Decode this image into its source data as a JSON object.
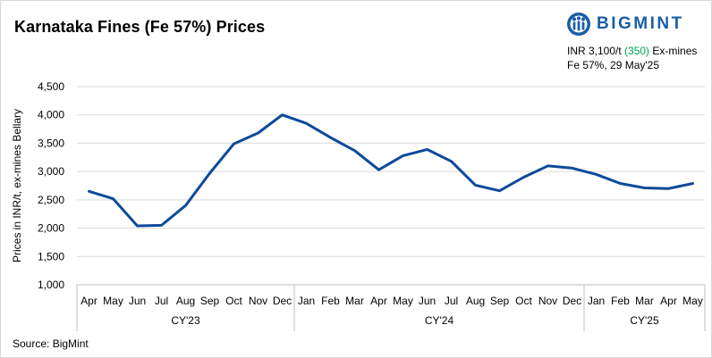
{
  "header": {
    "title": "Karnataka Fines (Fe 57%) Prices",
    "brand_name": "BIGMINT",
    "price_prefix": "INR 3,100/t ",
    "price_change": "(350)",
    "price_suffix": " Ex-mines",
    "spec_line": "Fe 57%, 29 May'25",
    "brand_color": "#1b5fa8",
    "change_color": "#00a651"
  },
  "footer": {
    "source": "Source: BigMint"
  },
  "chart_data": {
    "type": "line",
    "title": "Karnataka Fines (Fe 57%) Prices",
    "ylabel": "Prices in INR/t, ex-mines Bellary",
    "xlabel": "",
    "ylim": [
      1000,
      4500
    ],
    "yticks": [
      1000,
      1500,
      2000,
      2500,
      3000,
      3500,
      4000,
      4500
    ],
    "ytick_labels": [
      "1,000",
      "1,500",
      "2,000",
      "2,500",
      "3,000",
      "3,500",
      "4,000",
      "4,500"
    ],
    "grid": true,
    "legend": "none",
    "line_color": "#0d4a9a",
    "categories": [
      "Apr",
      "May",
      "Jun",
      "Jul",
      "Aug",
      "Sep",
      "Oct",
      "Nov",
      "Dec",
      "Jan",
      "Feb",
      "Mar",
      "Apr",
      "May",
      "Jun",
      "Jul",
      "Aug",
      "Sep",
      "Oct",
      "Nov",
      "Dec",
      "Jan",
      "Feb",
      "Mar",
      "Apr",
      "May"
    ],
    "groups": [
      {
        "label": "CY'23",
        "start": 0,
        "end": 8
      },
      {
        "label": "CY'24",
        "start": 9,
        "end": 20
      },
      {
        "label": "CY'25",
        "start": 21,
        "end": 25
      }
    ],
    "series": [
      {
        "values": [
          2650,
          2520,
          2040,
          2050,
          2400,
          2970,
          3490,
          3680,
          4000,
          3850,
          3600,
          3370,
          3030,
          3280,
          3390,
          3180,
          2760,
          2660,
          2900,
          3100,
          3060,
          2950,
          2790,
          2710,
          2700,
          2790
        ]
      }
    ]
  }
}
